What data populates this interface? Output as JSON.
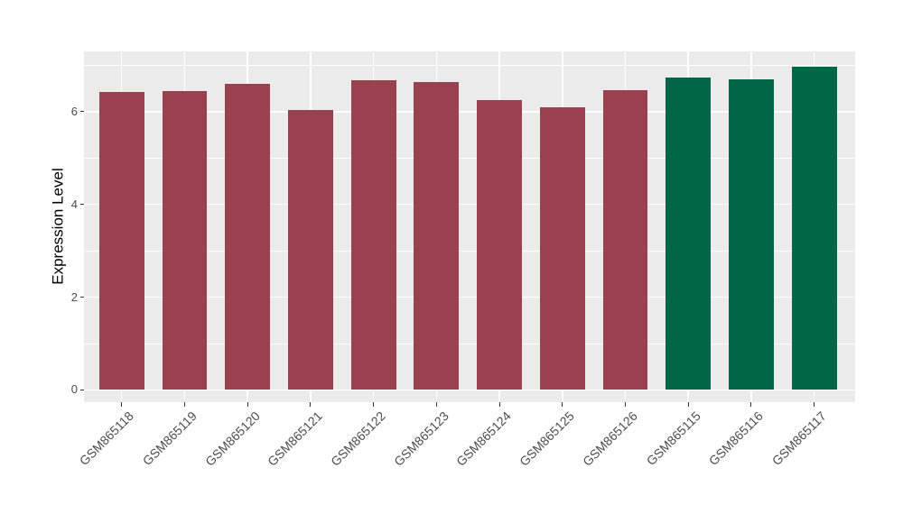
{
  "figure": {
    "background": "#FFFFFF"
  },
  "chart_data": {
    "type": "bar",
    "title": "",
    "xlabel": "",
    "ylabel": "Expression Level",
    "categories": [
      "GSM865118",
      "GSM865119",
      "GSM865120",
      "GSM865121",
      "GSM865122",
      "GSM865123",
      "GSM865124",
      "GSM865125",
      "GSM865126",
      "GSM865115",
      "GSM865116",
      "GSM865117"
    ],
    "values": [
      6.43,
      6.45,
      6.6,
      6.03,
      6.68,
      6.64,
      6.25,
      6.1,
      6.47,
      6.74,
      6.7,
      6.97
    ],
    "bar_colors": [
      "#9A4150",
      "#9A4150",
      "#9A4150",
      "#9A4150",
      "#9A4150",
      "#9A4150",
      "#9A4150",
      "#9A4150",
      "#9A4150",
      "#006646",
      "#006646",
      "#006646"
    ],
    "yticks": [
      0,
      2,
      4,
      6
    ],
    "yticks_minor": [
      1,
      3,
      5,
      7
    ],
    "ylim": [
      -0.27,
      7.3
    ],
    "grid": "on",
    "legend_position": "none",
    "panel_background": "#EBEBEB",
    "grid_color": "#FFFFFF",
    "tick_color": "#333333",
    "axis_text_color": "#4D4D4D"
  }
}
